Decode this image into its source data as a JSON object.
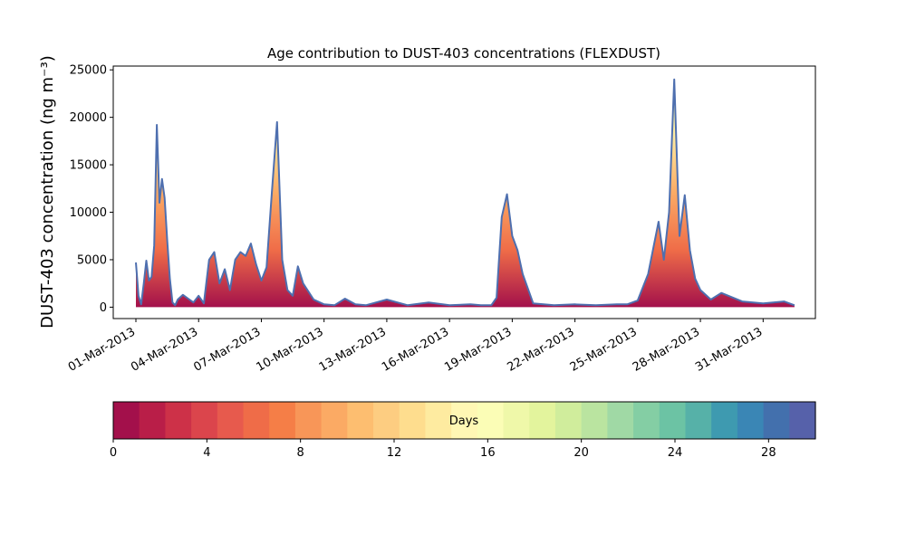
{
  "chart_data": {
    "type": "area",
    "title": "Age contribution to DUST-403 concentrations (FLEXDUST)",
    "ylabel": "DUST-403 concentration (ng m⁻³)",
    "xlabel": "",
    "ylim": [
      -1200,
      25400
    ],
    "xlim": [
      "2013-02-27T22:00",
      "2013-04-02T12:00"
    ],
    "grid": false,
    "y_ticks": [
      0,
      5000,
      10000,
      15000,
      20000,
      25000
    ],
    "x_ticks": [
      "01-Mar-2013",
      "04-Mar-2013",
      "07-Mar-2013",
      "10-Mar-2013",
      "13-Mar-2013",
      "16-Mar-2013",
      "19-Mar-2013",
      "22-Mar-2013",
      "25-Mar-2013",
      "28-Mar-2013",
      "31-Mar-2013"
    ],
    "x_tick_dates": [
      "2013-03-01",
      "2013-03-04",
      "2013-03-07",
      "2013-03-10",
      "2013-03-13",
      "2013-03-16",
      "2013-03-19",
      "2013-03-22",
      "2013-03-25",
      "2013-03-28",
      "2013-03-31"
    ],
    "series": [
      {
        "color": "#4e6faf",
        "x": [
          "2013-03-01T00:00",
          "2013-03-01T03:00",
          "2013-03-01T06:00",
          "2013-03-01T09:00",
          "2013-03-01T12:00",
          "2013-03-01T15:00",
          "2013-03-01T18:00",
          "2013-03-01T21:00",
          "2013-03-02T00:00",
          "2013-03-02T03:00",
          "2013-03-02T06:00",
          "2013-03-02T09:00",
          "2013-03-02T12:00",
          "2013-03-02T15:00",
          "2013-03-02T18:00",
          "2013-03-02T21:00",
          "2013-03-03T00:00",
          "2013-03-03T06:00",
          "2013-03-03T12:00",
          "2013-03-03T18:00",
          "2013-03-04T00:00",
          "2013-03-04T06:00",
          "2013-03-04T12:00",
          "2013-03-04T18:00",
          "2013-03-05T00:00",
          "2013-03-05T06:00",
          "2013-03-05T12:00",
          "2013-03-05T18:00",
          "2013-03-06T00:00",
          "2013-03-06T06:00",
          "2013-03-06T12:00",
          "2013-03-06T18:00",
          "2013-03-07T00:00",
          "2013-03-07T06:00",
          "2013-03-07T12:00",
          "2013-03-07T18:00",
          "2013-03-08T00:00",
          "2013-03-08T06:00",
          "2013-03-08T12:00",
          "2013-03-08T18:00",
          "2013-03-09T00:00",
          "2013-03-09T12:00",
          "2013-03-10T00:00",
          "2013-03-10T12:00",
          "2013-03-11T00:00",
          "2013-03-11T12:00",
          "2013-03-12T00:00",
          "2013-03-13T00:00",
          "2013-03-14T00:00",
          "2013-03-15T00:00",
          "2013-03-16T00:00",
          "2013-03-17T00:00",
          "2013-03-17T12:00",
          "2013-03-18T00:00",
          "2013-03-18T06:00",
          "2013-03-18T12:00",
          "2013-03-18T18:00",
          "2013-03-19T00:00",
          "2013-03-19T06:00",
          "2013-03-19T12:00",
          "2013-03-20T00:00",
          "2013-03-21T00:00",
          "2013-03-22T00:00",
          "2013-03-23T00:00",
          "2013-03-24T00:00",
          "2013-03-24T12:00",
          "2013-03-25T00:00",
          "2013-03-25T12:00",
          "2013-03-26T00:00",
          "2013-03-26T06:00",
          "2013-03-26T12:00",
          "2013-03-26T18:00",
          "2013-03-27T00:00",
          "2013-03-27T06:00",
          "2013-03-27T12:00",
          "2013-03-27T18:00",
          "2013-03-28T00:00",
          "2013-03-28T12:00",
          "2013-03-29T00:00",
          "2013-03-30T00:00",
          "2013-03-31T00:00",
          "2013-04-01T00:00",
          "2013-04-01T12:00"
        ],
        "y": [
          4700,
          1200,
          300,
          2500,
          4900,
          2800,
          3200,
          6500,
          19200,
          11000,
          13500,
          11500,
          7000,
          3000,
          500,
          200,
          800,
          1300,
          900,
          500,
          1200,
          400,
          5000,
          5800,
          2500,
          4000,
          1800,
          5000,
          5800,
          5400,
          6700,
          4500,
          2800,
          4200,
          12000,
          19500,
          5000,
          1800,
          1200,
          4300,
          2500,
          800,
          300,
          200,
          900,
          300,
          200,
          800,
          200,
          500,
          200,
          300,
          200,
          200,
          1000,
          9500,
          11900,
          7500,
          6000,
          3500,
          400,
          200,
          300,
          200,
          300,
          300,
          700,
          3500,
          9000,
          5000,
          10000,
          24000,
          7500,
          11800,
          6000,
          3000,
          1800,
          800,
          1500,
          600,
          400,
          600,
          200
        ]
      }
    ],
    "colorbar": {
      "label": "Days",
      "ticks": [
        0,
        4,
        8,
        12,
        16,
        20,
        24,
        28
      ],
      "range": [
        0,
        30
      ],
      "colors": [
        "#a3104b",
        "#b91e48",
        "#cd3148",
        "#db454c",
        "#e75a4d",
        "#ef6c48",
        "#f57e47",
        "#f89658",
        "#fbaa64",
        "#fdbe70",
        "#fdcd81",
        "#fedd8e",
        "#feeba0",
        "#fff7b4",
        "#fbfdb6",
        "#eff8a9",
        "#e3f49d",
        "#d0ed9c",
        "#bae4a0",
        "#a0d9a5",
        "#84cea4",
        "#6cc3a4",
        "#56b1a8",
        "#3e9ab0",
        "#3a86b5",
        "#4370ad",
        "#5661aa"
      ]
    }
  }
}
